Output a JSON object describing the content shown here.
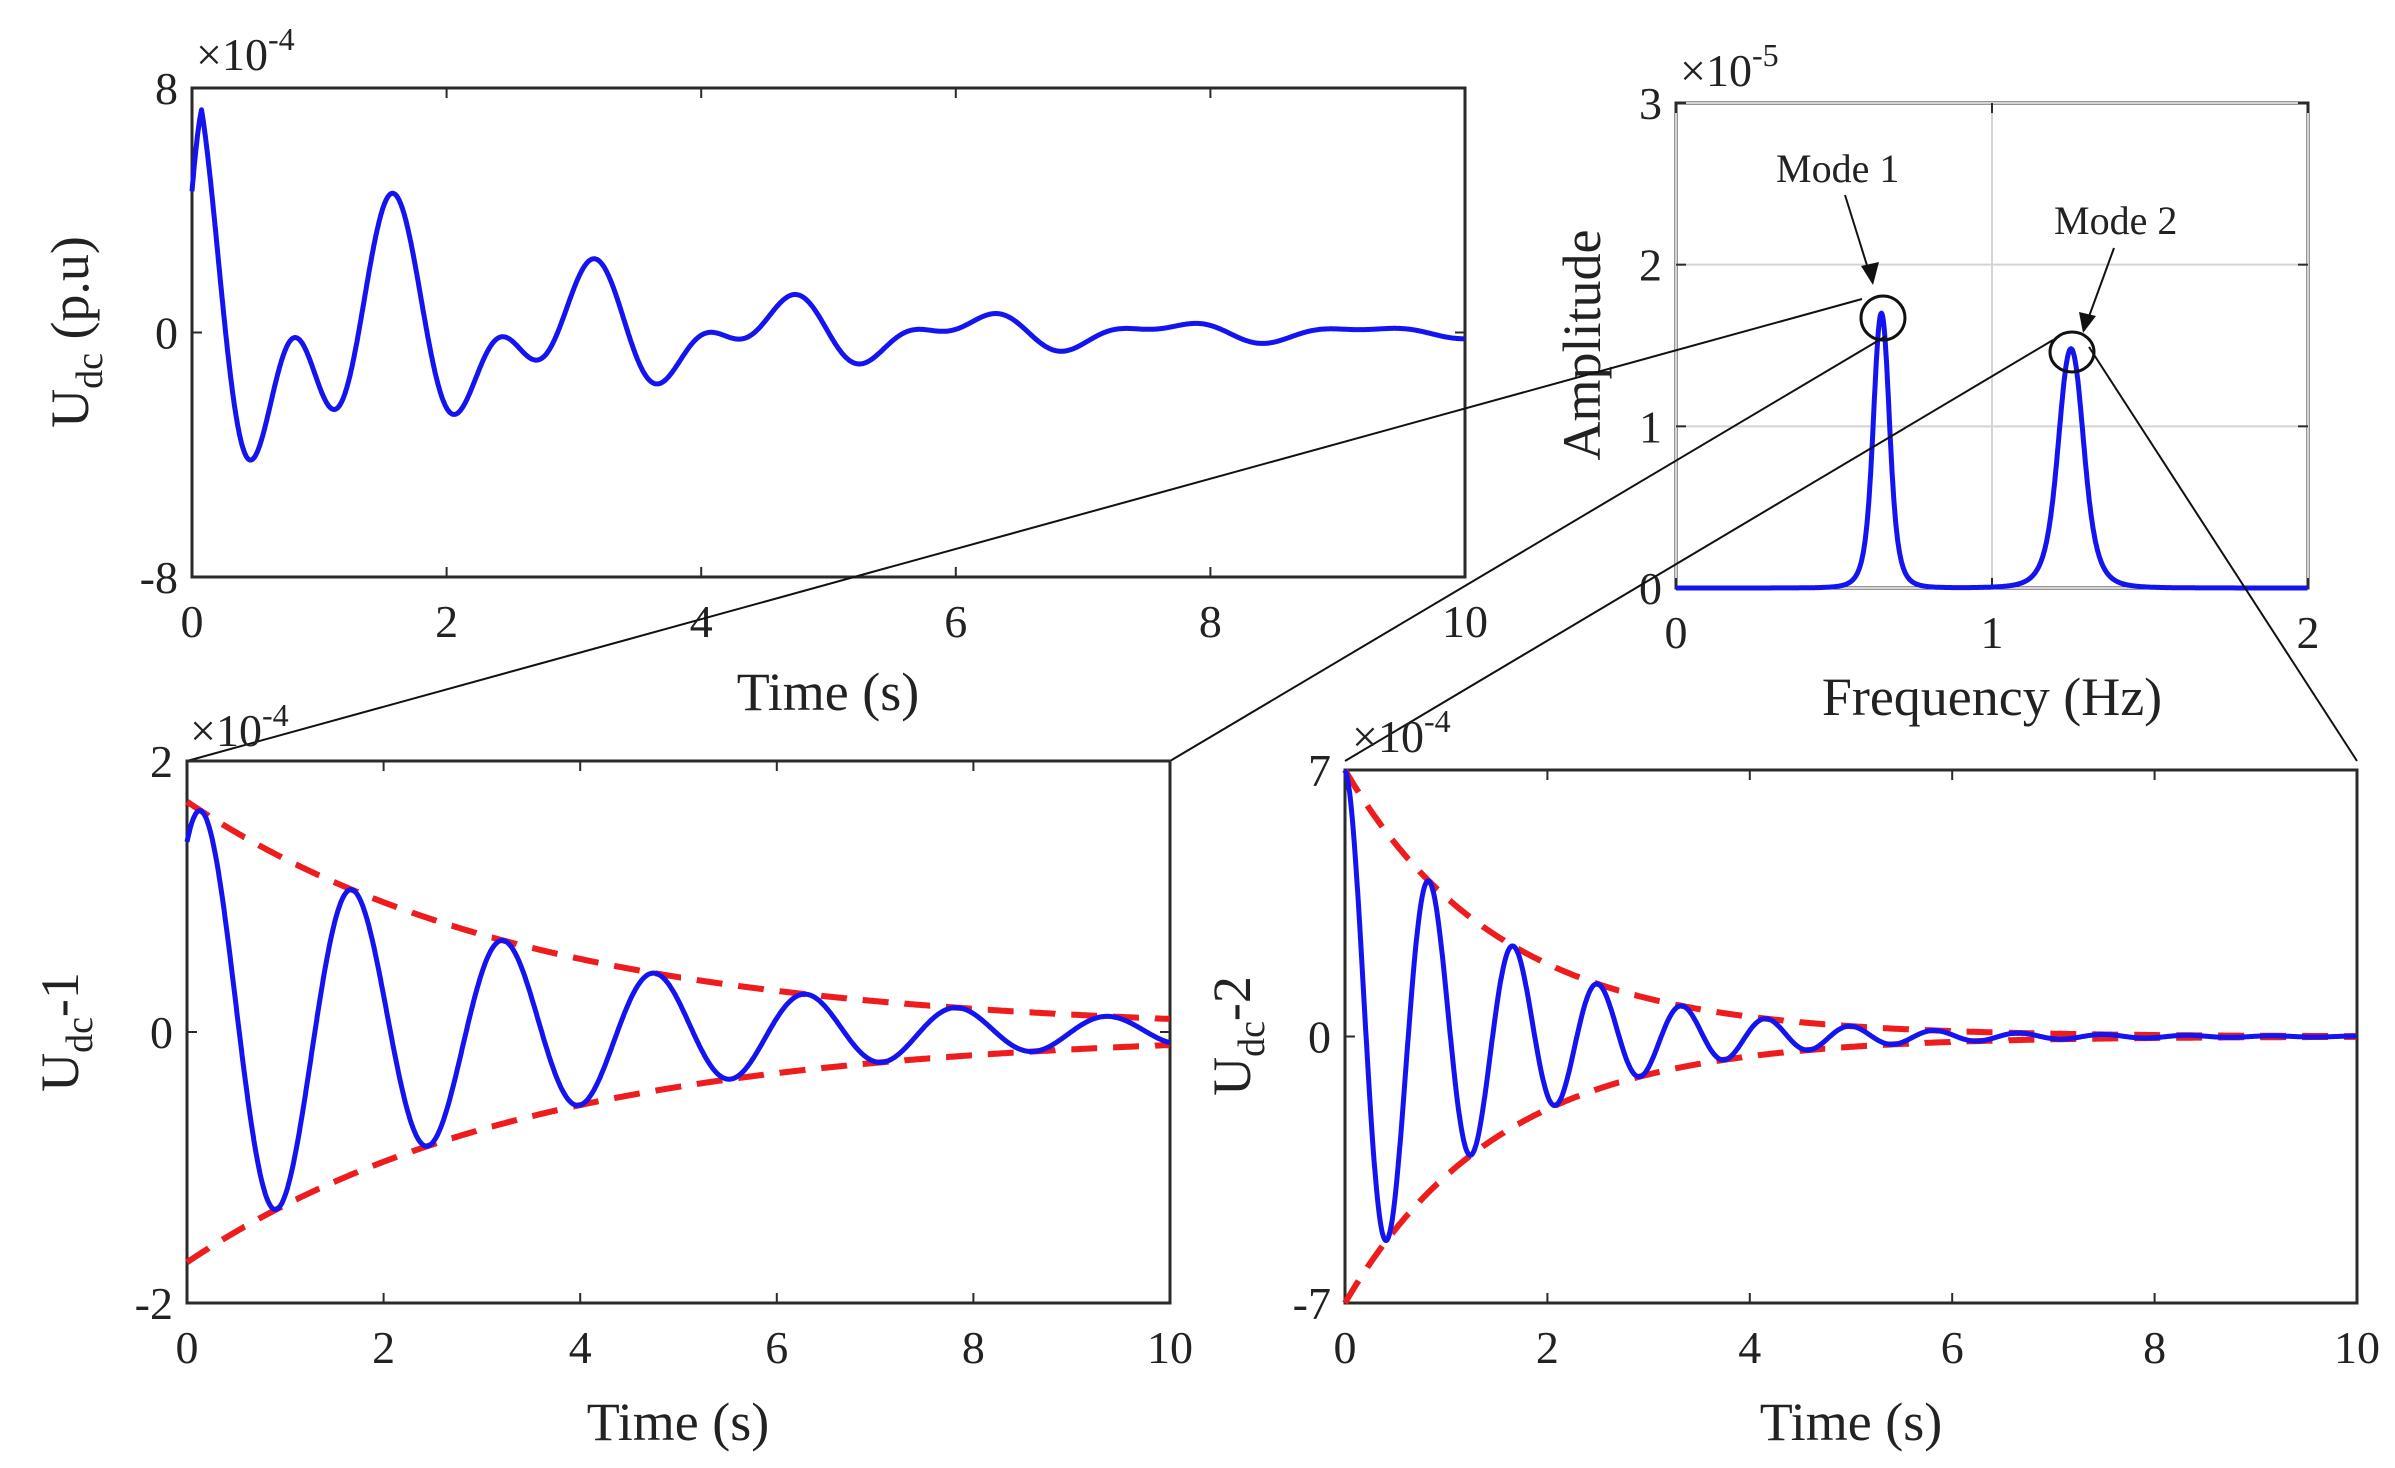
{
  "charts": {
    "time_domain": {
      "type": "line",
      "exponent": "×10",
      "exponent_power": "-4",
      "ylabel_main": "U",
      "ylabel_sub": "dc",
      "ylabel_unit": " (p.u)",
      "xlabel": "Time (s)",
      "ylim": [
        -8,
        8
      ],
      "xlim": [
        0,
        10
      ],
      "xticks": [
        "0",
        "2",
        "4",
        "6",
        "8",
        "10"
      ],
      "yticks": [
        "8",
        "0",
        "-8"
      ],
      "ytick_values": [
        8,
        0,
        -8
      ],
      "series_color": "#1414f0",
      "components": [
        {
          "amplitude": 4.2,
          "decay": 0.34,
          "frequency": 0.65
        },
        {
          "amplitude": 4.2,
          "decay": 0.42,
          "frequency": 1.25
        }
      ]
    },
    "spectrum": {
      "type": "line",
      "exponent": "×10",
      "exponent_power": "-5",
      "ylabel": "Amplitude",
      "xlabel": "Frequency (Hz)",
      "xlim": [
        0,
        2
      ],
      "ylim": [
        0,
        3
      ],
      "xticks": [
        "0",
        "1",
        "2"
      ],
      "yticks": [
        "3",
        "2",
        "1",
        "0"
      ],
      "ytick_values": [
        3,
        2,
        1,
        0
      ],
      "grid": true,
      "series_color": "#1414f0",
      "peaks": [
        {
          "frequency": 0.65,
          "amplitude": 1.7,
          "width": 0.035,
          "label": "Mode 1"
        },
        {
          "frequency": 1.25,
          "amplitude": 1.48,
          "width": 0.055,
          "label": "Mode 2"
        }
      ]
    },
    "mode1": {
      "type": "line",
      "exponent": "×10",
      "exponent_power": "-4",
      "ylabel_main": "U",
      "ylabel_sub": "dc",
      "ylabel_suffix": "-1",
      "xlabel": "Time (s)",
      "xlim": [
        0,
        10
      ],
      "ylim": [
        -2,
        2
      ],
      "xticks": [
        "0",
        "2",
        "4",
        "6",
        "8",
        "10"
      ],
      "yticks": [
        "2",
        "0",
        "-2"
      ],
      "ytick_values": [
        2,
        0,
        -2
      ],
      "amplitude": 1.7,
      "decay": 0.287,
      "frequency": 0.65,
      "phase": -0.6,
      "series_color": "#1414f0",
      "envelope_color": "#ee1c1c"
    },
    "mode2": {
      "type": "line",
      "exponent": "×10",
      "exponent_power": "-4",
      "ylabel_main": "U",
      "ylabel_sub": "dc",
      "ylabel_suffix": "-2",
      "xlabel": "Time (s)",
      "xlim": [
        0,
        10
      ],
      "ylim": [
        -7,
        7
      ],
      "xticks": [
        "0",
        "2",
        "4",
        "6",
        "8",
        "10"
      ],
      "yticks": [
        "7",
        "0",
        "-7"
      ],
      "ytick_values": [
        7,
        0,
        -7
      ],
      "amplitude": 7,
      "decay": 0.65,
      "frequency": 1.2,
      "phase": 0,
      "series_color": "#1414f0",
      "envelope_color": "#ee1c1c"
    }
  }
}
